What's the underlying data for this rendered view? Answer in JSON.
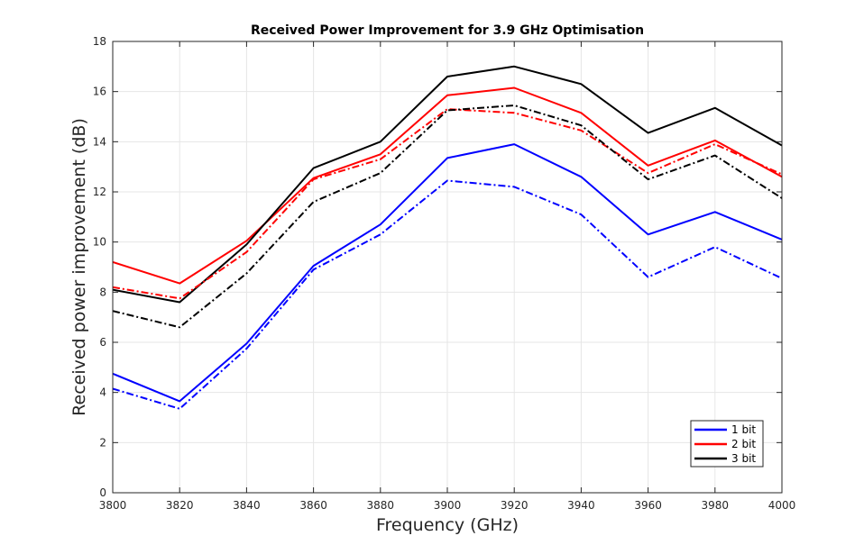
{
  "chart_data": {
    "type": "line",
    "title": "Received Power Improvement for 3.9 GHz Optimisation",
    "xlabel": "Frequency (GHz)",
    "ylabel": "Received power improvement (dB)",
    "xlim": [
      3800,
      4000
    ],
    "ylim": [
      0,
      18
    ],
    "x": [
      3800,
      3820,
      3840,
      3860,
      3880,
      3900,
      3920,
      3940,
      3960,
      3980,
      4000
    ],
    "xticks": [
      "3800",
      "3820",
      "3840",
      "3860",
      "3880",
      "3900",
      "3920",
      "3940",
      "3960",
      "3980",
      "4000"
    ],
    "yticks": [
      "0",
      "2",
      "4",
      "6",
      "8",
      "10",
      "12",
      "14",
      "16",
      "18"
    ],
    "grid": true,
    "legend_position": "bottom-right",
    "series": [
      {
        "name": "1 bit",
        "color": "#0000ff",
        "style": "solid",
        "values": [
          4.75,
          3.65,
          5.95,
          9.05,
          10.7,
          13.35,
          13.9,
          12.6,
          10.3,
          11.2,
          10.1
        ]
      },
      {
        "name": "2 bit",
        "color": "#ff0000",
        "style": "solid",
        "values": [
          9.2,
          8.35,
          10.05,
          12.55,
          13.5,
          15.85,
          16.15,
          15.15,
          13.05,
          14.05,
          12.6
        ]
      },
      {
        "name": "3 bit",
        "color": "#000000",
        "style": "solid",
        "values": [
          8.1,
          7.6,
          9.9,
          12.95,
          14.0,
          16.6,
          17.0,
          16.3,
          14.35,
          15.35,
          13.85
        ]
      },
      {
        "color": "#0000ff",
        "style": "dashdot",
        "values": [
          4.15,
          3.35,
          5.75,
          8.9,
          10.3,
          12.45,
          12.2,
          11.1,
          8.6,
          9.8,
          8.55
        ]
      },
      {
        "color": "#ff0000",
        "style": "dashdot",
        "values": [
          8.2,
          7.75,
          9.6,
          12.5,
          13.3,
          15.3,
          15.15,
          14.45,
          12.75,
          13.9,
          12.7
        ]
      },
      {
        "color": "#000000",
        "style": "dashdot",
        "values": [
          7.25,
          6.6,
          8.75,
          11.6,
          12.75,
          15.25,
          15.45,
          14.65,
          12.5,
          13.45,
          11.75
        ]
      }
    ],
    "legend": [
      {
        "label": "1 bit",
        "color": "#0000ff"
      },
      {
        "label": "2 bit",
        "color": "#ff0000"
      },
      {
        "label": "3 bit",
        "color": "#000000"
      }
    ]
  }
}
